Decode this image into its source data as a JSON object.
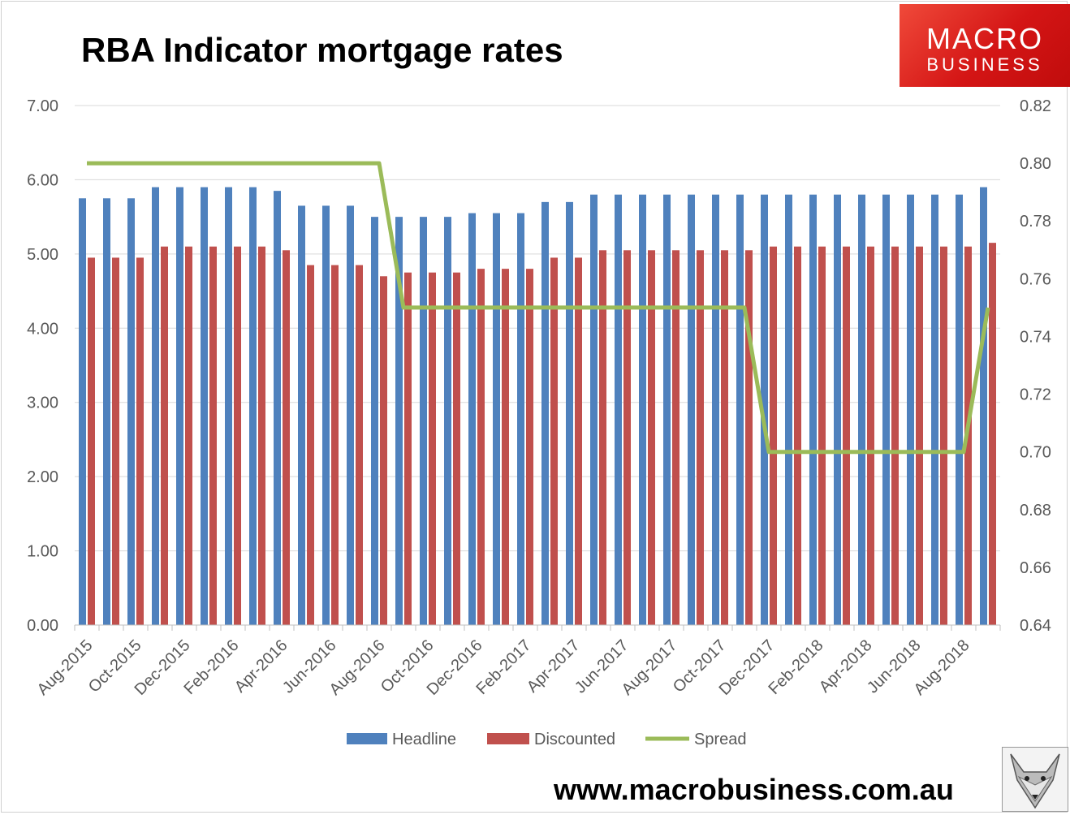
{
  "header": {
    "title": "RBA Indicator mortgage rates"
  },
  "logo": {
    "line1": "MACRO",
    "line2": "BUSINESS"
  },
  "footer": {
    "url": "www.macrobusiness.com.au"
  },
  "chart_data": {
    "type": "bar",
    "title": "RBA Indicator mortgage rates",
    "categories": [
      "Aug-2015",
      "Sep-2015",
      "Oct-2015",
      "Nov-2015",
      "Dec-2015",
      "Jan-2016",
      "Feb-2016",
      "Mar-2016",
      "Apr-2016",
      "May-2016",
      "Jun-2016",
      "Jul-2016",
      "Aug-2016",
      "Sep-2016",
      "Oct-2016",
      "Nov-2016",
      "Dec-2016",
      "Jan-2017",
      "Feb-2017",
      "Mar-2017",
      "Apr-2017",
      "May-2017",
      "Jun-2017",
      "Jul-2017",
      "Aug-2017",
      "Sep-2017",
      "Oct-2017",
      "Nov-2017",
      "Dec-2017",
      "Jan-2018",
      "Feb-2018",
      "Mar-2018",
      "Apr-2018",
      "May-2018",
      "Jun-2018",
      "Jul-2018",
      "Aug-2018",
      "Sep-2018"
    ],
    "shown_x_labels": [
      "Aug-2015",
      "Oct-2015",
      "Dec-2015",
      "Feb-2016",
      "Apr-2016",
      "Jun-2016",
      "Aug-2016",
      "Oct-2016",
      "Dec-2016",
      "Feb-2017",
      "Apr-2017",
      "Jun-2017",
      "Aug-2017",
      "Oct-2017",
      "Dec-2017",
      "Feb-2018",
      "Apr-2018",
      "Jun-2018",
      "Aug-2018"
    ],
    "series": [
      {
        "name": "Headline",
        "axis": "left",
        "type": "bar",
        "color": "#4f81bd",
        "values": [
          5.75,
          5.75,
          5.75,
          5.9,
          5.9,
          5.9,
          5.9,
          5.9,
          5.85,
          5.65,
          5.65,
          5.65,
          5.5,
          5.5,
          5.5,
          5.5,
          5.55,
          5.55,
          5.55,
          5.7,
          5.7,
          5.8,
          5.8,
          5.8,
          5.8,
          5.8,
          5.8,
          5.8,
          5.8,
          5.8,
          5.8,
          5.8,
          5.8,
          5.8,
          5.8,
          5.8,
          5.8,
          5.9
        ]
      },
      {
        "name": "Discounted",
        "axis": "left",
        "type": "bar",
        "color": "#c0504d",
        "values": [
          4.95,
          4.95,
          4.95,
          5.1,
          5.1,
          5.1,
          5.1,
          5.1,
          5.05,
          4.85,
          4.85,
          4.85,
          4.7,
          4.75,
          4.75,
          4.75,
          4.8,
          4.8,
          4.8,
          4.95,
          4.95,
          5.05,
          5.05,
          5.05,
          5.05,
          5.05,
          5.05,
          5.05,
          5.1,
          5.1,
          5.1,
          5.1,
          5.1,
          5.1,
          5.1,
          5.1,
          5.1,
          5.15
        ]
      },
      {
        "name": "Spread",
        "axis": "right",
        "type": "line",
        "color": "#9bbb59",
        "values": [
          0.8,
          0.8,
          0.8,
          0.8,
          0.8,
          0.8,
          0.8,
          0.8,
          0.8,
          0.8,
          0.8,
          0.8,
          0.8,
          0.75,
          0.75,
          0.75,
          0.75,
          0.75,
          0.75,
          0.75,
          0.75,
          0.75,
          0.75,
          0.75,
          0.75,
          0.75,
          0.75,
          0.75,
          0.7,
          0.7,
          0.7,
          0.7,
          0.7,
          0.7,
          0.7,
          0.7,
          0.7,
          0.75
        ]
      }
    ],
    "y_left": {
      "min": 0,
      "max": 7,
      "step": 1,
      "decimals": 2
    },
    "y_right": {
      "min": 0.64,
      "max": 0.82,
      "step": 0.02,
      "decimals": 2
    },
    "grid": true,
    "legend": "bottom-center",
    "xlabel": "",
    "ylabel": ""
  }
}
